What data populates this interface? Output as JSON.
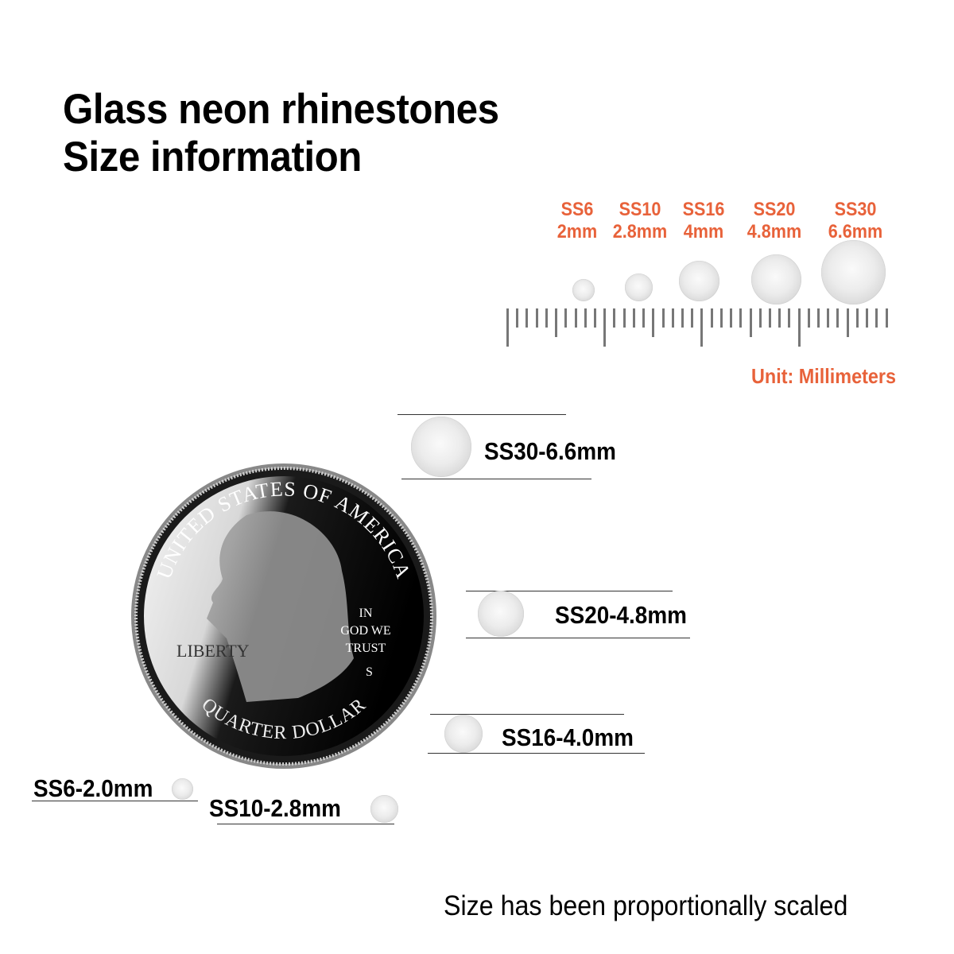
{
  "title": {
    "line1": "Glass neon rhinestones",
    "line2": "Size information"
  },
  "ruler_sizes": [
    {
      "code": "SS6",
      "size": "2mm",
      "diameter_mm": 2.0
    },
    {
      "code": "SS10",
      "size": "2.8mm",
      "diameter_mm": 2.8
    },
    {
      "code": "SS16",
      "size": "4mm",
      "diameter_mm": 4.0
    },
    {
      "code": "SS20",
      "size": "4.8mm",
      "diameter_mm": 4.8
    },
    {
      "code": "SS30",
      "size": "6.6mm",
      "diameter_mm": 6.6
    }
  ],
  "unit_label": "Unit: Millimeters",
  "comparison_labels": {
    "ss30": "SS30-6.6mm",
    "ss20": "SS20-4.8mm",
    "ss16": "SS16-4.0mm",
    "ss6": "SS6-2.0mm",
    "ss10": "SS10-2.8mm"
  },
  "coin": {
    "top": "UNITED STATES OF AMERICA",
    "bottom": "QUARTER DOLLAR",
    "liberty": "LIBERTY",
    "motto": [
      "IN",
      "GOD WE",
      "TRUST"
    ],
    "mint": "S"
  },
  "footnote": "Size has been proportionally scaled",
  "colors": {
    "accent": "#e8623a",
    "text": "#000000"
  }
}
